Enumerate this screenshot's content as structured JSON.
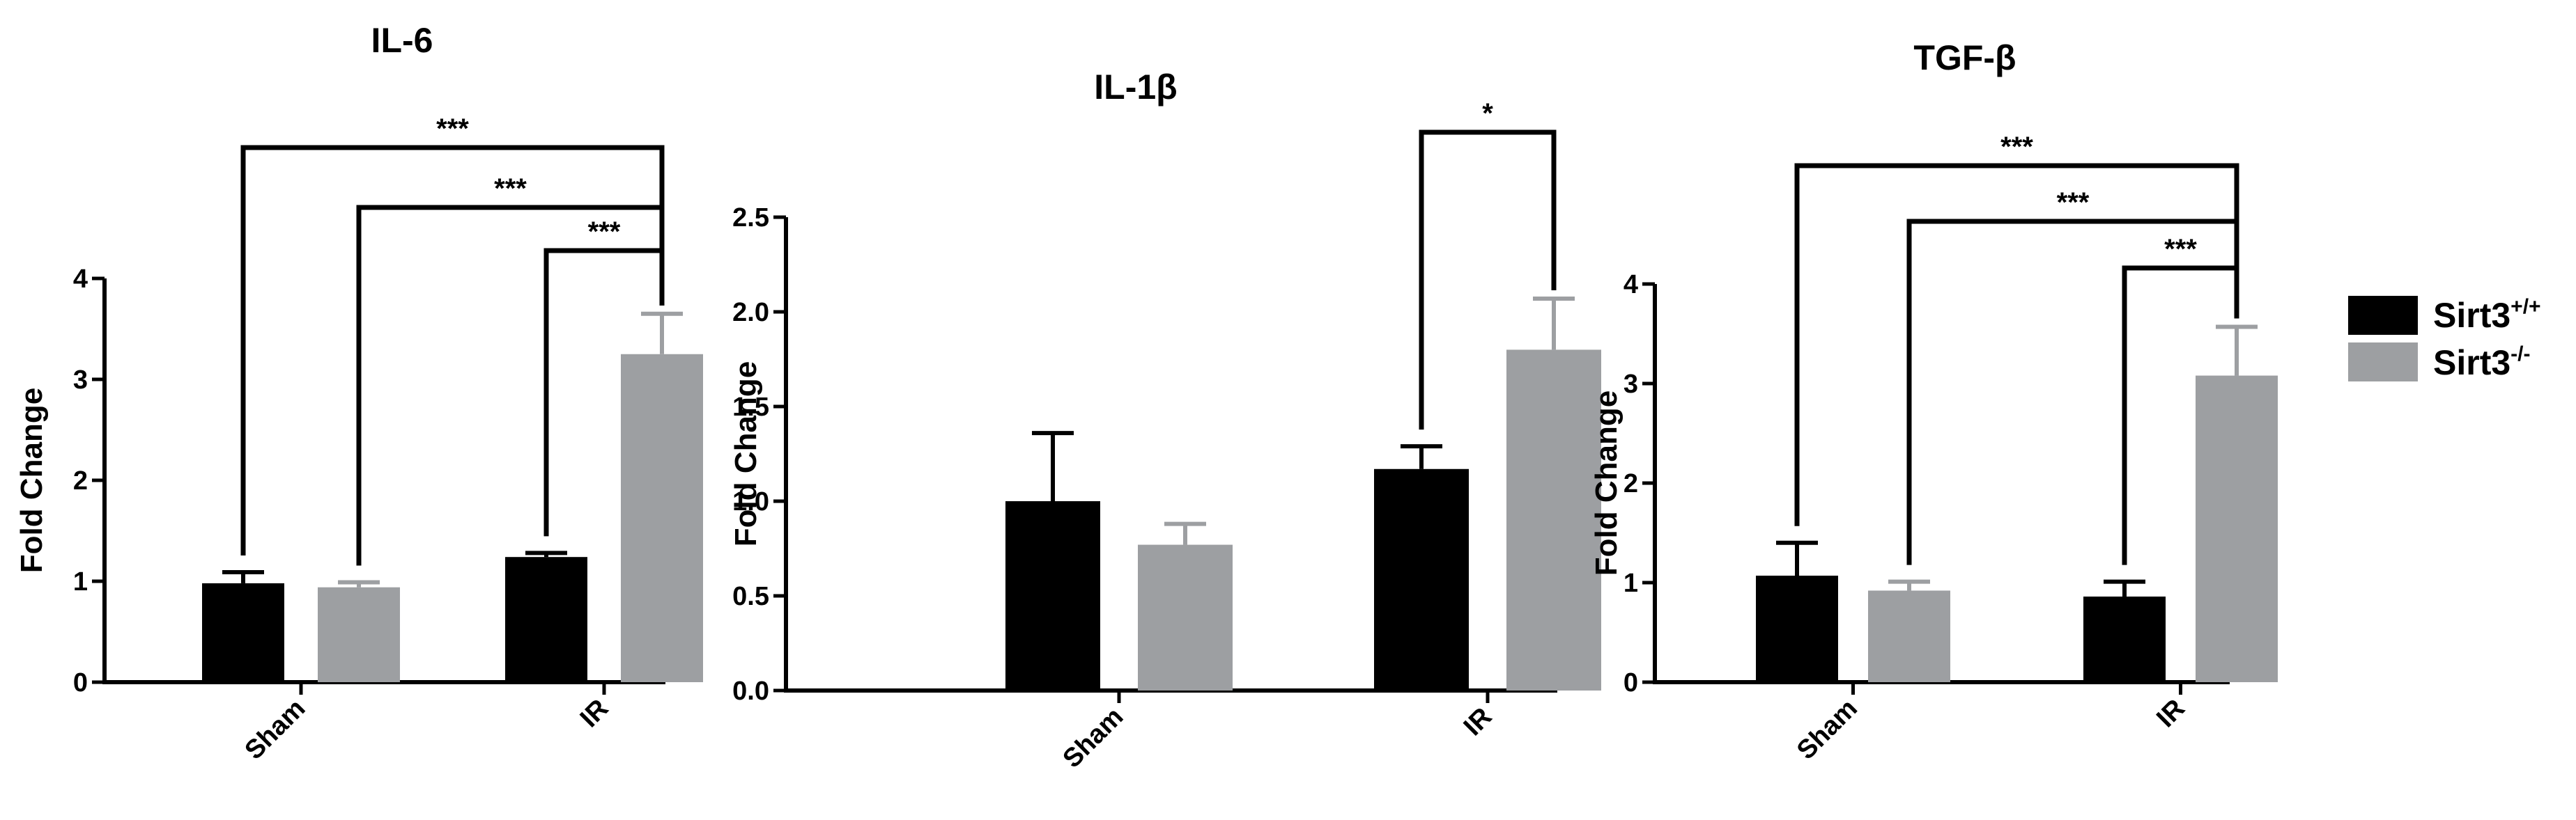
{
  "chart_data": [
    {
      "type": "bar",
      "title": "IL-6",
      "ylabel": "Fold Change",
      "xlabel": "",
      "categories": [
        "Sham",
        "IR"
      ],
      "ylim": [
        0,
        4
      ],
      "yticks": [
        "0",
        "1",
        "2",
        "3",
        "4"
      ],
      "series": [
        {
          "name": "Sirt3+/+",
          "values": [
            0.98,
            1.24
          ],
          "errors": [
            0.11,
            0.04
          ]
        },
        {
          "name": "Sirt3-/-",
          "values": [
            0.94,
            3.25
          ],
          "errors": [
            0.05,
            0.4
          ]
        }
      ],
      "significance": [
        {
          "from": [
            0,
            0
          ],
          "to": [
            1,
            1
          ],
          "label": "***"
        },
        {
          "from": [
            0,
            1
          ],
          "to": [
            1,
            1
          ],
          "label": "***"
        },
        {
          "from": [
            1,
            0
          ],
          "to": [
            1,
            1
          ],
          "label": "***"
        }
      ]
    },
    {
      "type": "bar",
      "title": "IL-1β",
      "ylabel": "Fold Change",
      "xlabel": "",
      "categories": [
        "Sham",
        "IR"
      ],
      "ylim": [
        0,
        2.5
      ],
      "yticks": [
        "0.0",
        "0.5",
        "1.0",
        "1.5",
        "2.0",
        "2.5"
      ],
      "series": [
        {
          "name": "Sirt3+/+",
          "values": [
            1.0,
            1.17
          ],
          "errors": [
            0.36,
            0.12
          ]
        },
        {
          "name": "Sirt3-/-",
          "values": [
            0.77,
            1.8
          ],
          "errors": [
            0.11,
            0.27
          ]
        }
      ],
      "significance": [
        {
          "from": [
            1,
            0
          ],
          "to": [
            1,
            1
          ],
          "label": "*"
        }
      ]
    },
    {
      "type": "bar",
      "title": "TGF-β",
      "ylabel": "Fold Change",
      "xlabel": "",
      "categories": [
        "Sham",
        "IR"
      ],
      "ylim": [
        0,
        4
      ],
      "yticks": [
        "0",
        "1",
        "2",
        "3",
        "4"
      ],
      "series": [
        {
          "name": "Sirt3+/+",
          "values": [
            1.07,
            0.86
          ],
          "errors": [
            0.33,
            0.15
          ]
        },
        {
          "name": "Sirt3-/-",
          "values": [
            0.92,
            3.08
          ],
          "errors": [
            0.09,
            0.49
          ]
        }
      ],
      "significance": [
        {
          "from": [
            0,
            0
          ],
          "to": [
            1,
            1
          ],
          "label": "***"
        },
        {
          "from": [
            0,
            1
          ],
          "to": [
            1,
            1
          ],
          "label": "***"
        },
        {
          "from": [
            1,
            0
          ],
          "to": [
            1,
            1
          ],
          "label": "***"
        }
      ]
    }
  ],
  "legend": {
    "placement": "right",
    "items": [
      {
        "label": "Sirt3",
        "sup": "+/+",
        "color": "#000000"
      },
      {
        "label": "Sirt3",
        "sup": "-/-",
        "color": "#9d9fa2"
      }
    ]
  },
  "colors": {
    "wildtype": "#000000",
    "knockout": "#9d9fa2"
  }
}
